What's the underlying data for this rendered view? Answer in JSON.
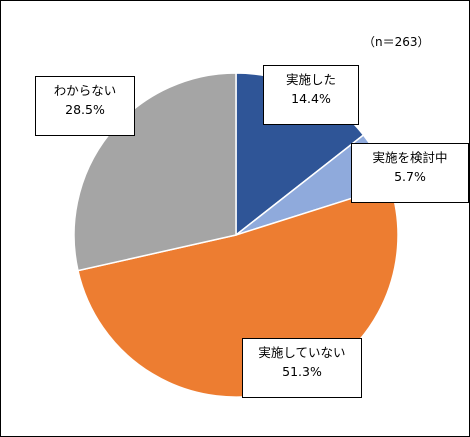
{
  "chart_data": {
    "type": "pie",
    "note": "（n＝263）",
    "slices": [
      {
        "label": "実施した",
        "value": 14.4,
        "value_label": "14.4%",
        "color": "#2f5597"
      },
      {
        "label": "実施を検討中",
        "value": 5.7,
        "value_label": "5.7%",
        "color": "#8faadc"
      },
      {
        "label": "実施していない",
        "value": 51.3,
        "value_label": "51.3%",
        "color": "#ed7d31"
      },
      {
        "label": "わからない",
        "value": 28.5,
        "value_label": "28.5%",
        "color": "#a5a5a5"
      }
    ],
    "start": "12 o'clock",
    "direction": "clockwise"
  }
}
